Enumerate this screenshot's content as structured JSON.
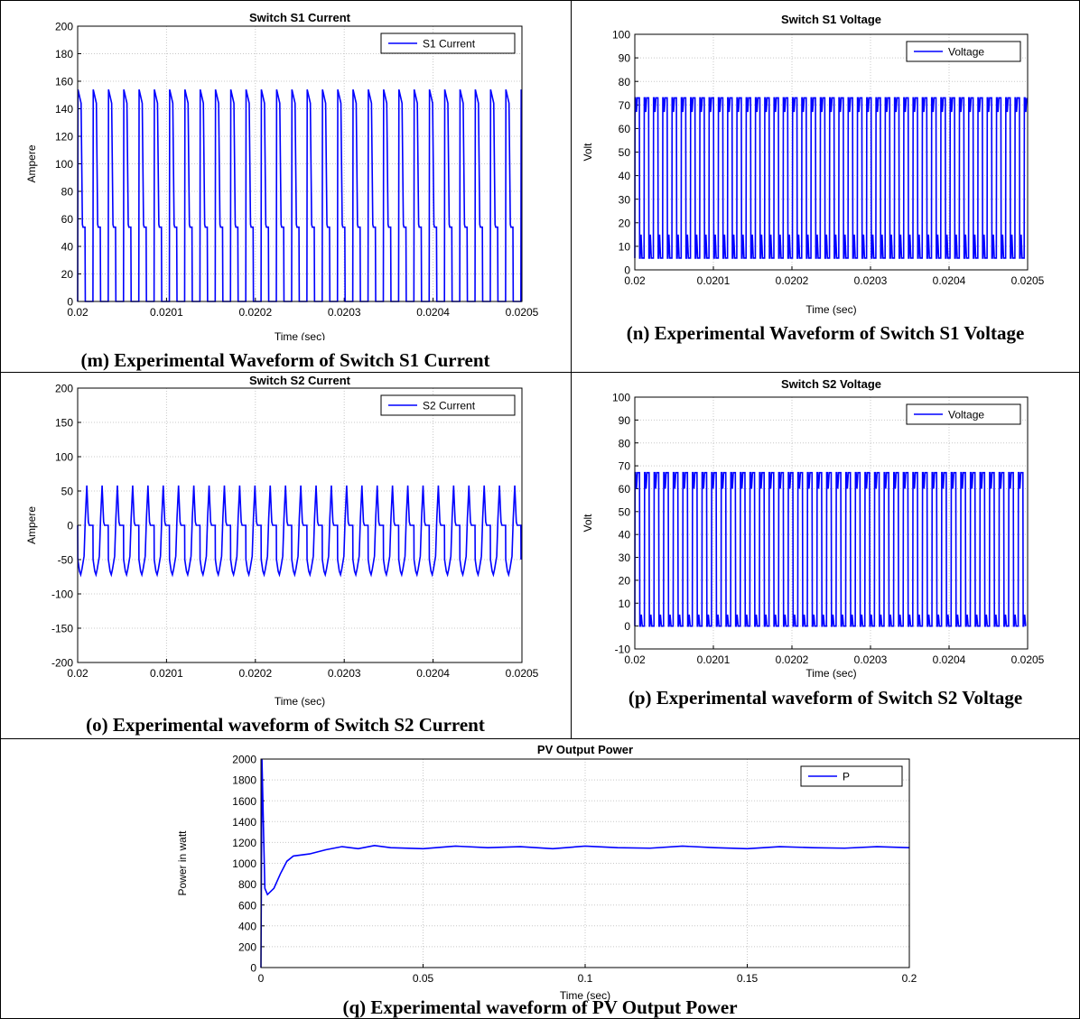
{
  "chart_data": [
    {
      "id": "m",
      "type": "line",
      "title": "Switch S1 Current",
      "xlabel": "Time (sec)",
      "ylabel": "Ampere",
      "xlim": [
        0.02,
        0.0205
      ],
      "ylim": [
        0,
        200
      ],
      "xticks": [
        0.02,
        0.0201,
        0.0202,
        0.0203,
        0.0204,
        0.0205
      ],
      "xtick_labels": [
        "0.02",
        "0.0201",
        "0.0202",
        "0.0203",
        "0.0204",
        "0.0205"
      ],
      "yticks": [
        0,
        20,
        40,
        60,
        80,
        100,
        120,
        140,
        160,
        180,
        200
      ],
      "ytick_labels": [
        "0",
        "20",
        "40",
        "60",
        "80",
        "100",
        "120",
        "140",
        "160",
        "180",
        "200"
      ],
      "grid": true,
      "legend_position": "top-right",
      "series": [
        {
          "name": "S1 Current",
          "color": "#0000ff",
          "waveform": "pulsed",
          "period": 1.72e-05,
          "peak": 154,
          "plateau": 54,
          "min": 0,
          "duty": 0.5
        }
      ],
      "caption": "(m) Experimental Waveform of Switch S1 Current"
    },
    {
      "id": "n",
      "type": "line",
      "title": "Switch S1 Voltage",
      "xlabel": "Time (sec)",
      "ylabel": "Volt",
      "xlim": [
        0.02,
        0.0205
      ],
      "ylim": [
        0,
        100
      ],
      "xticks": [
        0.02,
        0.0201,
        0.0202,
        0.0203,
        0.0204,
        0.0205
      ],
      "xtick_labels": [
        "0.02",
        "0.0201",
        "0.0202",
        "0.0203",
        "0.0204",
        "0.0205"
      ],
      "yticks": [
        0,
        10,
        20,
        30,
        40,
        50,
        60,
        70,
        80,
        90,
        100
      ],
      "ytick_labels": [
        "0",
        "10",
        "20",
        "30",
        "40",
        "50",
        "60",
        "70",
        "80",
        "90",
        "100"
      ],
      "grid": true,
      "legend_position": "top-right",
      "series": [
        {
          "name": "Voltage",
          "color": "#0000ff",
          "waveform": "square",
          "period": 1.18e-05,
          "high": 73,
          "high_dip": 67,
          "low": 5,
          "low_bump": 15,
          "duty": 0.5
        }
      ],
      "caption": "(n) Experimental Waveform of Switch S1 Voltage"
    },
    {
      "id": "o",
      "type": "line",
      "title": "Switch S2 Current",
      "xlabel": "Time (sec)",
      "ylabel": "Ampere",
      "xlim": [
        0.02,
        0.0205
      ],
      "ylim": [
        -200,
        200
      ],
      "xticks": [
        0.02,
        0.0201,
        0.0202,
        0.0203,
        0.0204,
        0.0205
      ],
      "xtick_labels": [
        "0.02",
        "0.0201",
        "0.0202",
        "0.0203",
        "0.0204",
        "0.0205"
      ],
      "yticks": [
        -200,
        -150,
        -100,
        -50,
        0,
        50,
        100,
        150,
        200
      ],
      "ytick_labels": [
        "-200",
        "-150",
        "-100",
        "-50",
        "0",
        "50",
        "100",
        "150",
        "200"
      ],
      "grid": true,
      "legend_position": "top-right",
      "series": [
        {
          "name": "S2 Current",
          "color": "#0000ff",
          "waveform": "bipolar",
          "period": 1.72e-05,
          "max": 58,
          "min": -72,
          "zero_level": 0
        }
      ],
      "caption": "(o) Experimental waveform of Switch S2 Current"
    },
    {
      "id": "p",
      "type": "line",
      "title": "Switch S2 Voltage",
      "xlabel": "Time (sec)",
      "ylabel": "Volt",
      "xlim": [
        0.02,
        0.0205
      ],
      "ylim": [
        -10,
        100
      ],
      "xticks": [
        0.02,
        0.0201,
        0.0202,
        0.0203,
        0.0204,
        0.0205
      ],
      "xtick_labels": [
        "0.02",
        "0.0201",
        "0.0202",
        "0.0203",
        "0.0204",
        "0.0205"
      ],
      "yticks": [
        -10,
        0,
        10,
        20,
        30,
        40,
        50,
        60,
        70,
        80,
        90,
        100
      ],
      "ytick_labels": [
        "-10",
        "0",
        "10",
        "20",
        "30",
        "40",
        "50",
        "60",
        "70",
        "80",
        "90",
        "100"
      ],
      "grid": true,
      "legend_position": "top-right",
      "series": [
        {
          "name": "Voltage",
          "color": "#0000ff",
          "waveform": "square",
          "period": 1.22e-05,
          "high": 67,
          "high_dip": 60,
          "low": 0,
          "low_bump": 5,
          "duty": 0.5
        }
      ],
      "caption": "(p) Experimental waveform of Switch S2 Voltage"
    },
    {
      "id": "q",
      "type": "line",
      "title": "PV Output Power",
      "xlabel": "Time (sec)",
      "ylabel": "Power in watt",
      "xlim": [
        0,
        0.2
      ],
      "ylim": [
        0,
        2000
      ],
      "xticks": [
        0,
        0.05,
        0.1,
        0.15,
        0.2
      ],
      "xtick_labels": [
        "0",
        "0.05",
        "0.1",
        "0.15",
        "0.2"
      ],
      "yticks": [
        0,
        200,
        400,
        600,
        800,
        1000,
        1200,
        1400,
        1600,
        1800,
        2000
      ],
      "ytick_labels": [
        "0",
        "200",
        "400",
        "600",
        "800",
        "1000",
        "1200",
        "1400",
        "1600",
        "1800",
        "2000"
      ],
      "grid": true,
      "legend_position": "top-right",
      "series": [
        {
          "name": "P",
          "color": "#0000ff",
          "points": [
            [
              0,
              0
            ],
            [
              0.0003,
              2000
            ],
            [
              0.0008,
              1300
            ],
            [
              0.0012,
              760
            ],
            [
              0.002,
              700
            ],
            [
              0.004,
              760
            ],
            [
              0.006,
              900
            ],
            [
              0.008,
              1020
            ],
            [
              0.01,
              1070
            ],
            [
              0.015,
              1090
            ],
            [
              0.02,
              1130
            ],
            [
              0.025,
              1160
            ],
            [
              0.03,
              1140
            ],
            [
              0.035,
              1170
            ],
            [
              0.04,
              1150
            ],
            [
              0.05,
              1140
            ],
            [
              0.06,
              1165
            ],
            [
              0.07,
              1150
            ],
            [
              0.08,
              1160
            ],
            [
              0.09,
              1140
            ],
            [
              0.1,
              1165
            ],
            [
              0.11,
              1150
            ],
            [
              0.12,
              1145
            ],
            [
              0.13,
              1165
            ],
            [
              0.14,
              1150
            ],
            [
              0.15,
              1140
            ],
            [
              0.16,
              1160
            ],
            [
              0.17,
              1150
            ],
            [
              0.18,
              1145
            ],
            [
              0.19,
              1160
            ],
            [
              0.2,
              1150
            ]
          ]
        }
      ],
      "caption": "(q) Experimental waveform of PV Output Power"
    }
  ]
}
